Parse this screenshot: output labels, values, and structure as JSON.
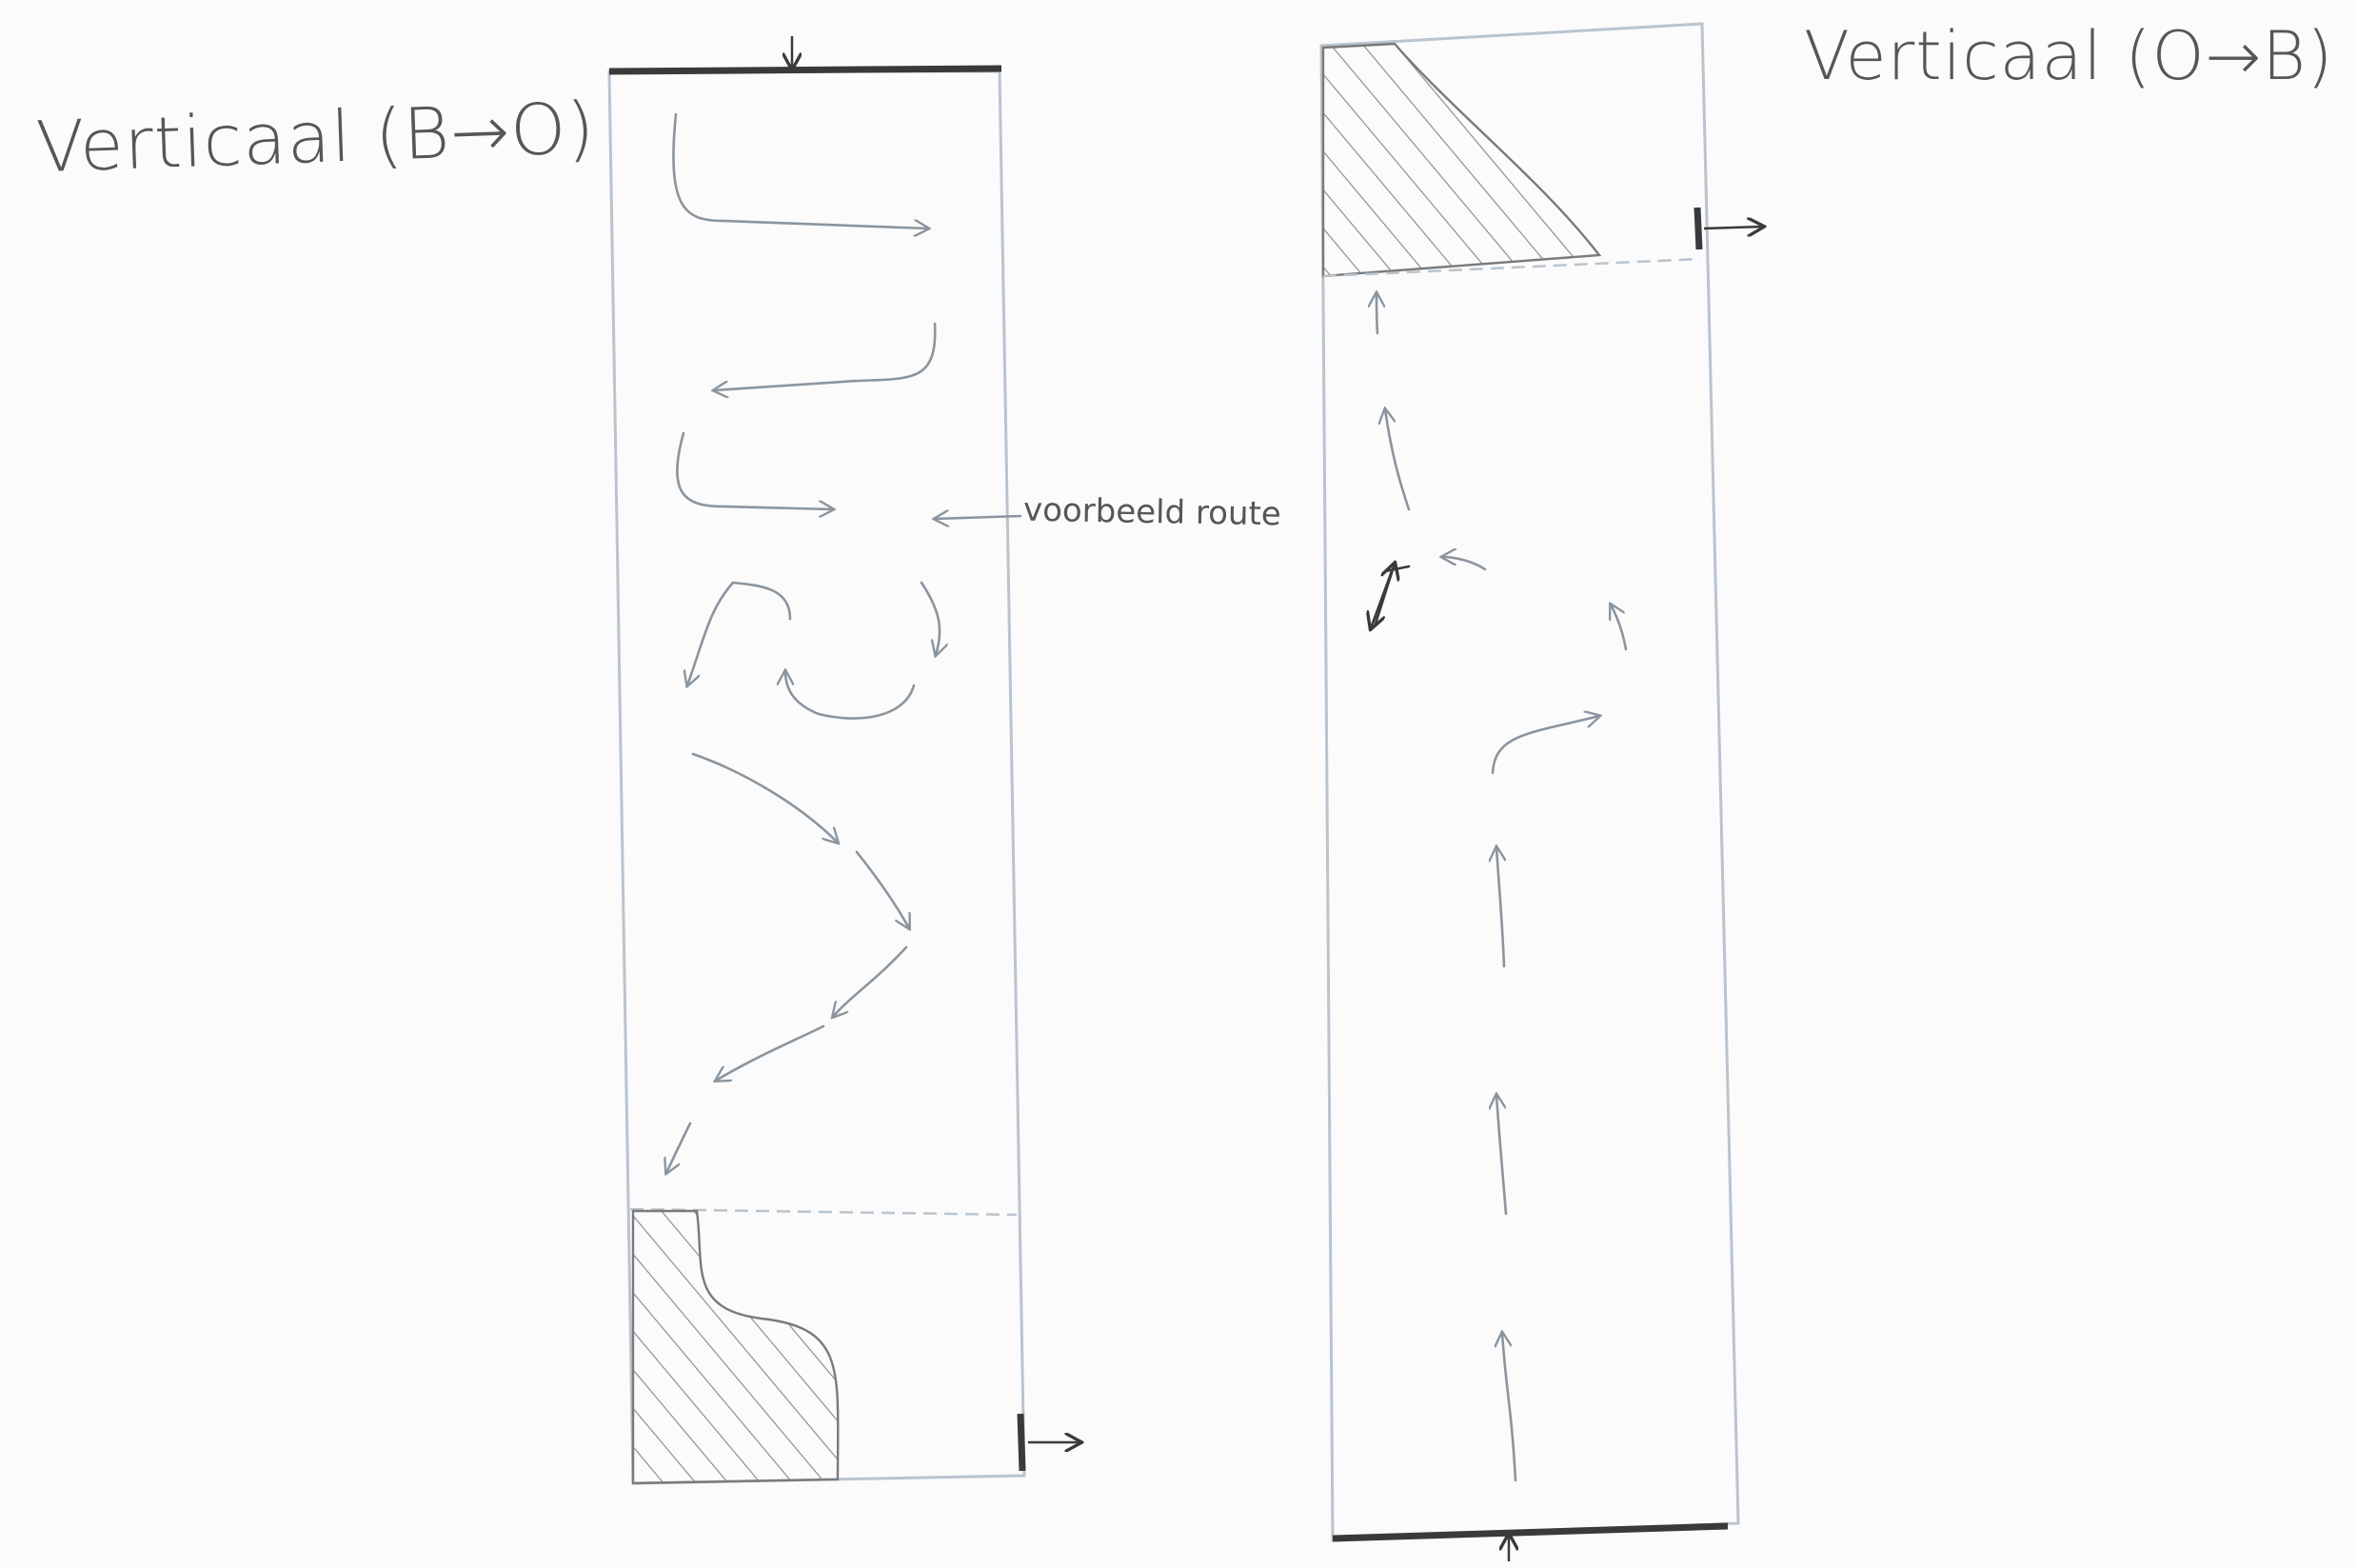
{
  "diagram": {
    "left_title": "Verticaal (B→O)",
    "right_title": "Verticaal (O→B)",
    "route_annotation": "voorbeeld route"
  },
  "colors": {
    "paper": "#fbfbfb",
    "pencil_outline": "#b9c4cf",
    "pencil_arrow": "#8a959f",
    "pencil_dark": "#3a3a3a",
    "hatch": "#8e8e8e"
  }
}
